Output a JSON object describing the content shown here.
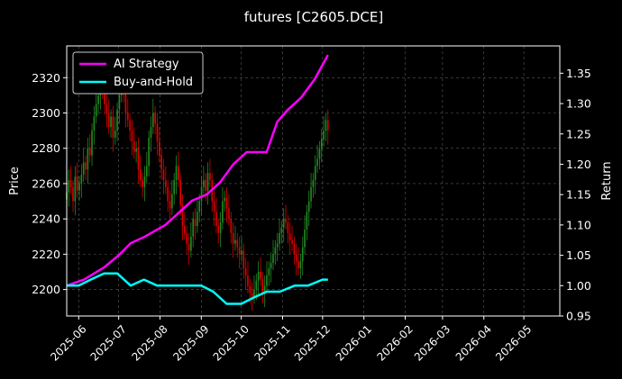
{
  "chart_data": {
    "type": "line",
    "title": "futures [C2605.DCE]",
    "ylabel_left": "Price",
    "ylabel_right": "Return",
    "grid": true,
    "legend_placement": "top-left",
    "x_range": [
      "2025-05-23",
      "2026-05-28"
    ],
    "y_left_range": [
      2185,
      2338
    ],
    "y_right_range": [
      0.95,
      1.395
    ],
    "x_ticks": [
      "2025-06",
      "2025-07",
      "2025-08",
      "2025-09",
      "2025-10",
      "2025-11",
      "2025-12",
      "2026-01",
      "2026-02",
      "2026-03",
      "2026-04",
      "2026-05"
    ],
    "x_tick_dates": [
      "2025-06-01",
      "2025-07-01",
      "2025-08-01",
      "2025-09-01",
      "2025-10-01",
      "2025-11-01",
      "2025-12-01",
      "2026-01-01",
      "2026-02-01",
      "2026-03-01",
      "2026-04-01",
      "2026-05-01"
    ],
    "y_left_ticks": [
      2200,
      2220,
      2240,
      2260,
      2280,
      2300,
      2320
    ],
    "y_right_ticks": [
      "0.95",
      "1.00",
      "1.05",
      "1.10",
      "1.15",
      "1.20",
      "1.25",
      "1.30",
      "1.35"
    ],
    "colors": {
      "up": "#228b22",
      "down": "#e00000",
      "ai": "#ff00ff",
      "bh": "#00ffff",
      "grid": "#5a5a5a"
    },
    "candles": {
      "start_date": "2025-05-23",
      "end_date": "2025-12-05",
      "close": [
        2255,
        2262,
        2258,
        2250,
        2264,
        2256,
        2260,
        2265,
        2272,
        2268,
        2280,
        2276,
        2290,
        2298,
        2305,
        2310,
        2318,
        2312,
        2305,
        2300,
        2292,
        2298,
        2286,
        2290,
        2302,
        2310,
        2318,
        2312,
        2300,
        2296,
        2290,
        2284,
        2278,
        2280,
        2268,
        2262,
        2258,
        2264,
        2270,
        2286,
        2292,
        2300,
        2294,
        2284,
        2276,
        2268,
        2262,
        2258,
        2250,
        2246,
        2254,
        2262,
        2270,
        2262,
        2248,
        2236,
        2232,
        2226,
        2222,
        2230,
        2240,
        2236,
        2244,
        2250,
        2258,
        2262,
        2256,
        2266,
        2262,
        2250,
        2244,
        2236,
        2232,
        2238,
        2250,
        2252,
        2246,
        2240,
        2232,
        2226,
        2228,
        2224,
        2220,
        2222,
        2212,
        2208,
        2202,
        2198,
        2196,
        2200,
        2205,
        2210,
        2206,
        2198,
        2202,
        2208,
        2212,
        2215,
        2220,
        2224,
        2226,
        2232,
        2235,
        2240,
        2238,
        2232,
        2228,
        2226,
        2220,
        2216,
        2212,
        2216,
        2224,
        2234,
        2244,
        2250,
        2258,
        2262,
        2270,
        2274,
        2280,
        2285,
        2290,
        2296,
        2290
      ],
      "up_color": "#228b22",
      "down_color": "#e00000"
    },
    "series": [
      {
        "name": "AI Strategy",
        "color": "#ff00ff",
        "axis": "right",
        "x": [
          "2025-05-23",
          "2025-06-05",
          "2025-06-20",
          "2025-07-01",
          "2025-07-10",
          "2025-07-20",
          "2025-08-05",
          "2025-08-15",
          "2025-08-25",
          "2025-09-05",
          "2025-09-15",
          "2025-09-25",
          "2025-10-05",
          "2025-10-12",
          "2025-10-20",
          "2025-10-28",
          "2025-11-05",
          "2025-11-15",
          "2025-11-25",
          "2025-12-05"
        ],
        "values": [
          1.0,
          1.01,
          1.03,
          1.05,
          1.07,
          1.08,
          1.1,
          1.12,
          1.14,
          1.15,
          1.17,
          1.2,
          1.22,
          1.22,
          1.22,
          1.27,
          1.29,
          1.31,
          1.34,
          1.38
        ]
      },
      {
        "name": "Buy-and-Hold",
        "color": "#00ffff",
        "axis": "right",
        "x": [
          "2025-05-23",
          "2025-06-01",
          "2025-06-10",
          "2025-06-20",
          "2025-06-30",
          "2025-07-10",
          "2025-07-20",
          "2025-07-30",
          "2025-08-10",
          "2025-08-20",
          "2025-09-01",
          "2025-09-10",
          "2025-09-20",
          "2025-10-01",
          "2025-10-10",
          "2025-10-20",
          "2025-10-30",
          "2025-11-10",
          "2025-11-20",
          "2025-12-01",
          "2025-12-05"
        ],
        "values": [
          1.0,
          1.0,
          1.01,
          1.02,
          1.02,
          1.0,
          1.01,
          1.0,
          1.0,
          1.0,
          1.0,
          0.99,
          0.97,
          0.97,
          0.98,
          0.99,
          0.99,
          1.0,
          1.0,
          1.01,
          1.01
        ]
      }
    ]
  }
}
